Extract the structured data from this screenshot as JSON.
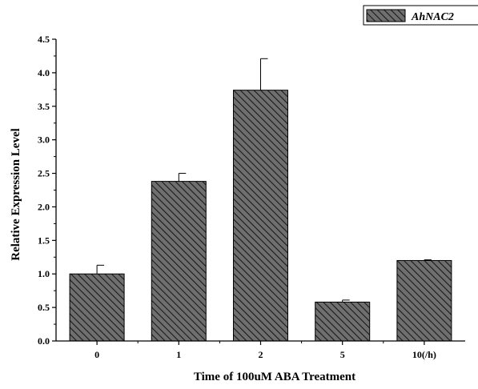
{
  "chart_data": {
    "type": "bar",
    "categories": [
      "0",
      "1",
      "2",
      "5",
      "10(/h)"
    ],
    "series": [
      {
        "name": "AhNAC2",
        "values": [
          1.0,
          2.38,
          3.74,
          0.58,
          1.2
        ],
        "errors": [
          0.13,
          0.12,
          0.47,
          0.03,
          0.01
        ]
      }
    ],
    "xlabel": "Time of 100uM ABA Treatment",
    "ylabel": "Relative Expression Level",
    "ylim": [
      0,
      4.5
    ],
    "yticks": [
      "0.0",
      "0.5",
      "1.0",
      "1.5",
      "2.0",
      "2.5",
      "3.0",
      "3.5",
      "4.0",
      "4.5"
    ],
    "grid": false,
    "legend": "top-right",
    "colors": {
      "bar_fill": "#6f6f6f",
      "hatch_line": "#1a1a1a",
      "axis": "#000000"
    }
  }
}
